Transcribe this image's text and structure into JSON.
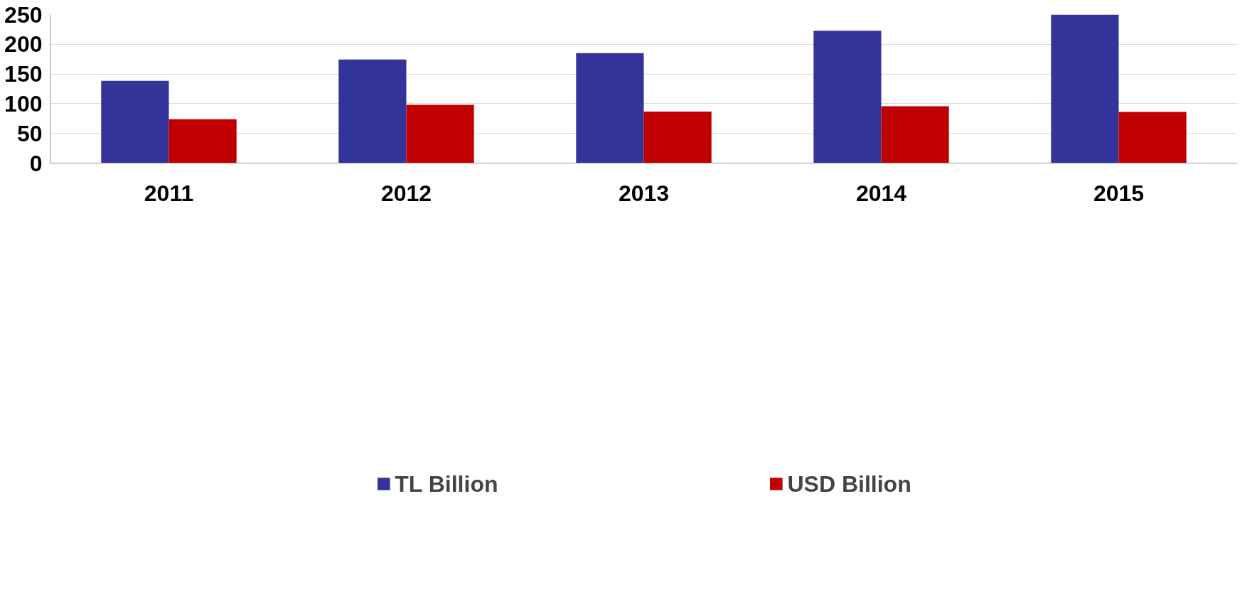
{
  "chart_data": {
    "type": "bar",
    "categories": [
      "2011",
      "2012",
      "2013",
      "2014",
      "2015"
    ],
    "series": [
      {
        "name": "TL Billion",
        "color": "#333399",
        "values": [
          138.4,
          174.4,
          185.0,
          222.8,
          250.0
        ]
      },
      {
        "name": "USD Billion",
        "color": "#c00000",
        "values": [
          73.8,
          98.0,
          86.6,
          95.8,
          86.1
        ]
      }
    ],
    "ylim": [
      0,
      250
    ],
    "yticks": [
      0,
      50,
      100,
      150,
      200,
      250
    ],
    "grid": "y",
    "legend": "bottom"
  }
}
